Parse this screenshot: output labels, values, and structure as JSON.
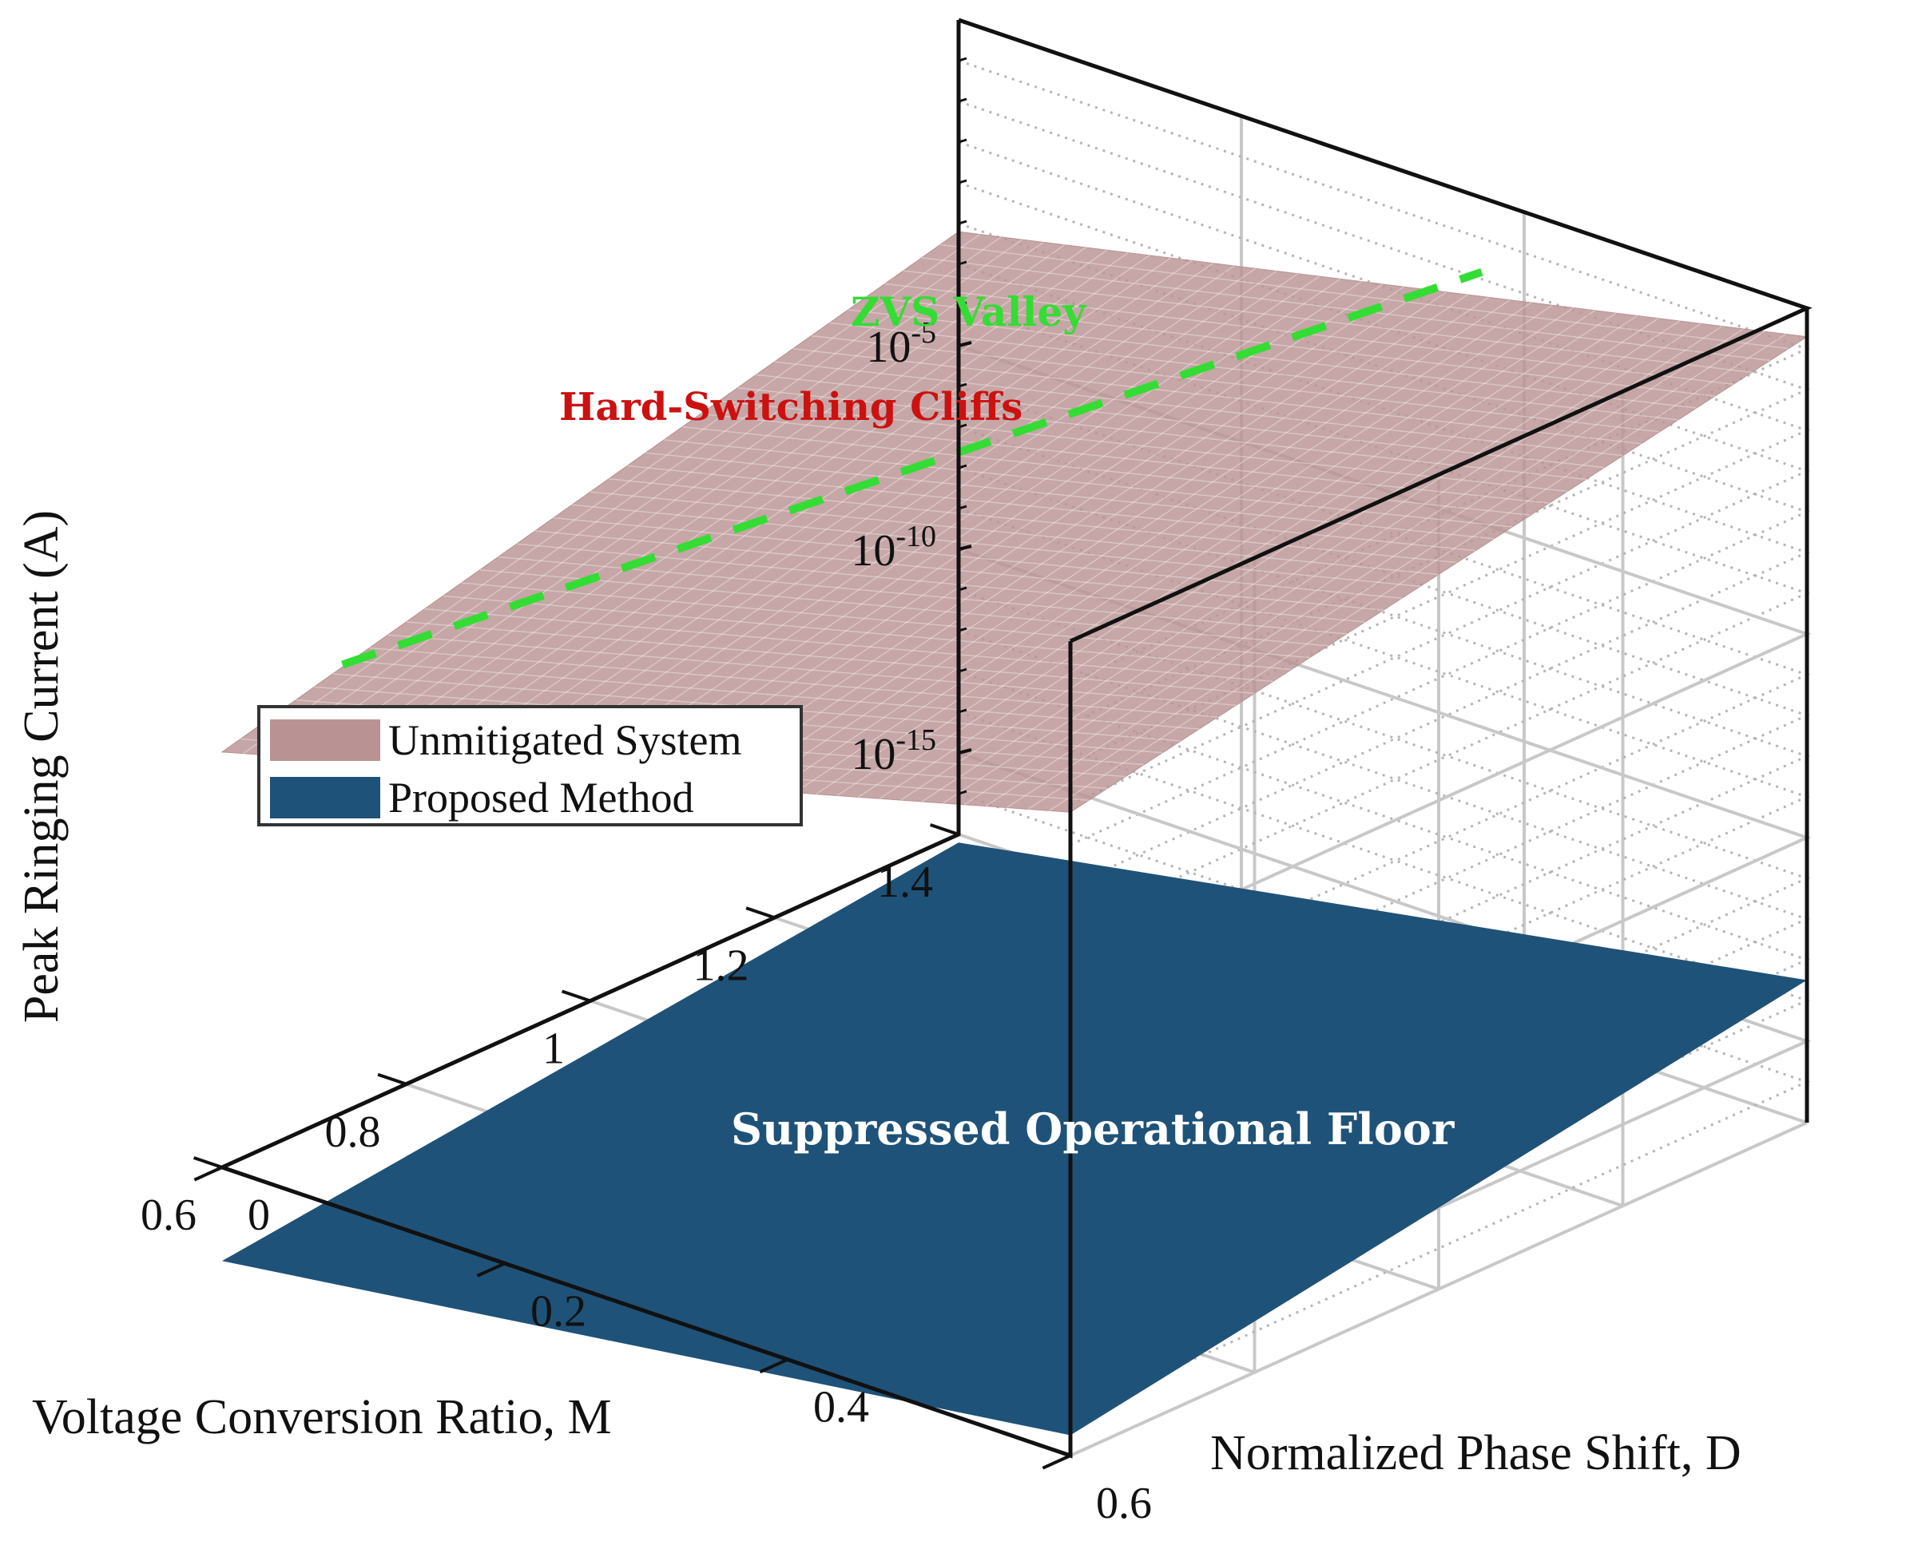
{
  "chart_data": {
    "type": "surface",
    "xlabel": "Voltage Conversion Ratio, M",
    "ylabel": "Normalized Phase Shift, D",
    "zlabel": "Peak Ringing Current (A)",
    "x_ticks": [
      "0.6",
      "0.8",
      "1",
      "1.2",
      "1.4"
    ],
    "y_ticks": [
      "0",
      "0.2",
      "0.4",
      "0.6"
    ],
    "z_ticks": [
      {
        "base": "10",
        "exp": "-15"
      },
      {
        "base": "10",
        "exp": "-10"
      },
      {
        "base": "10",
        "exp": "-5"
      }
    ],
    "xlim": [
      0.6,
      1.4
    ],
    "ylim": [
      0,
      0.6
    ],
    "zlim_log10": [
      -17,
      3
    ],
    "zscale": "log",
    "grid": true,
    "legend_position": "left",
    "series": [
      {
        "name": "Unmitigated System",
        "color": "#b99393",
        "log10_corners": {
          "M0.6_D0": -6.8,
          "M1.4_D0": -2.2,
          "M1.4_D0.6": 2.3,
          "M0.6_D0.6": -1.2
        }
      },
      {
        "name": "Proposed Method",
        "color": "#1f5278",
        "log10_corners": {
          "M0.6_D0": -19.3,
          "M1.4_D0": -17.2,
          "M1.4_D0.6": -13.5,
          "M0.6_D0.6": -16.5
        }
      }
    ],
    "annotations": {
      "zvs": "ZVS Valley",
      "cliffs": "Hard-Switching Cliffs",
      "floor": "Suppressed Operational Floor"
    },
    "colors": {
      "zvs": "#33dd33",
      "cliffs": "#cc1111",
      "floor": "#ffffff"
    }
  }
}
